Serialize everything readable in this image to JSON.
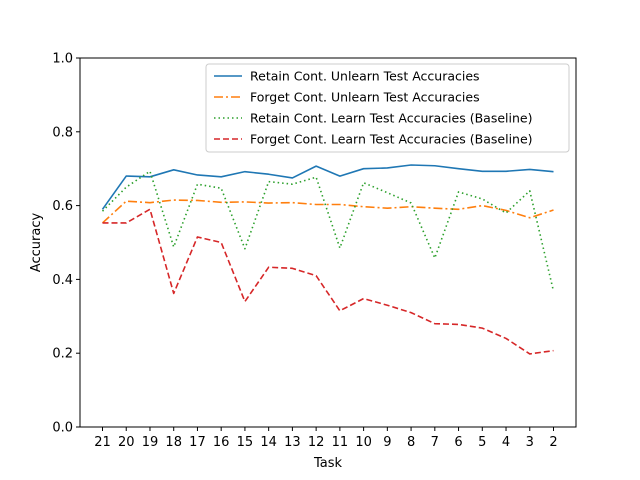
{
  "chart_data": {
    "type": "line",
    "title": "",
    "xlabel": "Task",
    "ylabel": "Accuracy",
    "ylim": [
      0.0,
      1.0
    ],
    "yticks": [
      "0.0",
      "0.2",
      "0.4",
      "0.6",
      "0.8",
      "1.0"
    ],
    "categories": [
      "21",
      "20",
      "19",
      "18",
      "17",
      "16",
      "15",
      "14",
      "13",
      "12",
      "11",
      "10",
      "9",
      "8",
      "7",
      "6",
      "5",
      "4",
      "3",
      "2"
    ],
    "legend_position": "top-right",
    "grid": false,
    "series": [
      {
        "name": "Retain Cont. Unlearn Test Accuracies",
        "color": "#1f77b4",
        "dash": "solid",
        "values": [
          0.59,
          0.68,
          0.678,
          0.697,
          0.683,
          0.678,
          0.692,
          0.685,
          0.675,
          0.707,
          0.68,
          0.7,
          0.702,
          0.71,
          0.708,
          0.7,
          0.693,
          0.693,
          0.698,
          0.692
        ]
      },
      {
        "name": "Forget Cont. Unlearn Test Accuracies",
        "color": "#ff7f0e",
        "dash": "dashdot",
        "values": [
          0.553,
          0.612,
          0.608,
          0.615,
          0.614,
          0.609,
          0.61,
          0.607,
          0.608,
          0.603,
          0.603,
          0.597,
          0.593,
          0.597,
          0.593,
          0.59,
          0.6,
          0.587,
          0.567,
          0.588
        ]
      },
      {
        "name": "Retain Cont. Learn Test Accuracies (Baseline)",
        "color": "#2ca02c",
        "dash": "dotted",
        "values": [
          0.585,
          0.65,
          0.693,
          0.488,
          0.658,
          0.647,
          0.483,
          0.665,
          0.658,
          0.677,
          0.485,
          0.662,
          0.635,
          0.607,
          0.458,
          0.637,
          0.618,
          0.58,
          0.64,
          0.368
        ]
      },
      {
        "name": "Forget Cont. Learn Test Accuracies (Baseline)",
        "color": "#d62728",
        "dash": "dashed",
        "values": [
          0.553,
          0.553,
          0.59,
          0.362,
          0.515,
          0.5,
          0.34,
          0.433,
          0.43,
          0.41,
          0.315,
          0.348,
          0.33,
          0.31,
          0.28,
          0.278,
          0.268,
          0.24,
          0.198,
          0.207
        ]
      }
    ]
  }
}
